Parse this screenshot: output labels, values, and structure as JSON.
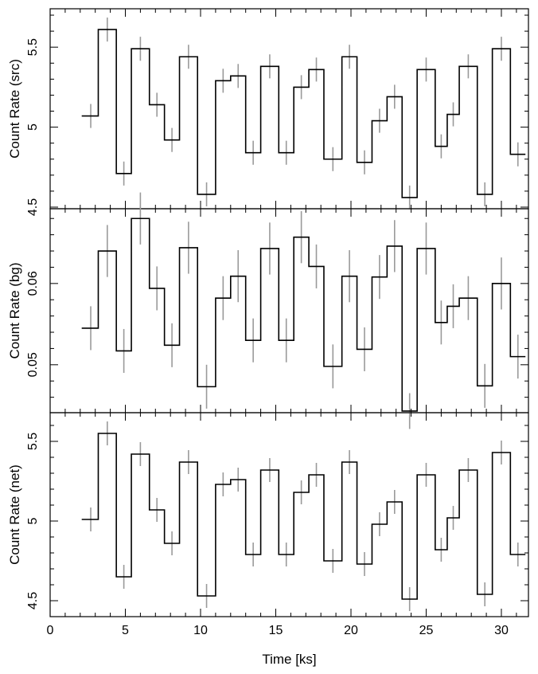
{
  "chart_data": {
    "type": "line",
    "style": "step-histogram-with-error-bars",
    "xlabel": "Time [ks]",
    "xlim": [
      0,
      31.8
    ],
    "x_ticks": [
      0,
      5,
      10,
      15,
      20,
      25,
      30
    ],
    "x_tick_labels": [
      "0",
      "5",
      "10",
      "15",
      "20",
      "25",
      "30"
    ],
    "bin_edges": [
      2.1,
      3.2,
      4.4,
      5.4,
      6.6,
      7.6,
      8.6,
      9.8,
      11.0,
      12.0,
      13.0,
      14.0,
      15.2,
      16.2,
      17.2,
      18.2,
      19.4,
      20.4,
      21.4,
      22.4,
      23.4,
      24.4,
      25.6,
      26.4,
      27.2,
      28.4,
      29.4,
      30.6,
      31.6
    ],
    "error_bar_x": [
      2.7,
      3.8,
      4.9,
      6.0,
      7.1,
      8.1,
      9.2,
      10.4,
      11.5,
      12.5,
      13.5,
      14.6,
      15.7,
      16.7,
      17.7,
      18.8,
      19.9,
      20.9,
      21.9,
      22.9,
      23.9,
      25.0,
      26.0,
      26.8,
      27.8,
      28.9,
      30.0,
      31.1
    ],
    "panels": [
      {
        "ylabel": "Count Rate (src)",
        "ylim": [
          4.49,
          5.74
        ],
        "y_ticks": [
          4.5,
          5,
          5.5
        ],
        "y_tick_labels": [
          "4.5",
          "5",
          "5.5"
        ],
        "values": [
          5.07,
          5.61,
          4.71,
          5.49,
          5.14,
          4.92,
          5.44,
          4.58,
          5.29,
          5.32,
          4.84,
          5.38,
          4.84,
          5.25,
          5.36,
          4.8,
          5.44,
          4.78,
          5.04,
          5.19,
          4.56,
          5.36,
          4.88,
          5.08,
          5.38,
          4.58,
          5.49,
          4.83
        ],
        "errors": [
          0.075,
          0.075,
          0.075,
          0.075,
          0.075,
          0.075,
          0.075,
          0.075,
          0.075,
          0.075,
          0.075,
          0.075,
          0.075,
          0.075,
          0.075,
          0.075,
          0.075,
          0.075,
          0.075,
          0.075,
          0.075,
          0.075,
          0.075,
          0.075,
          0.075,
          0.075,
          0.075,
          0.075
        ]
      },
      {
        "ylabel": "Count Rate (bg)",
        "ylim": [
          0.0441,
          0.0692
        ],
        "y_ticks": [
          0.05,
          0.06
        ],
        "y_tick_labels": [
          "0.05",
          "0.06"
        ],
        "values": [
          0.0545,
          0.064,
          0.0517,
          0.068,
          0.0594,
          0.0524,
          0.0644,
          0.0473,
          0.0582,
          0.0609,
          0.053,
          0.0643,
          0.053,
          0.0657,
          0.0621,
          0.0498,
          0.0609,
          0.0519,
          0.0608,
          0.0646,
          0.0443,
          0.0643,
          0.0552,
          0.0572,
          0.0582,
          0.0474,
          0.06,
          0.051
        ],
        "errors": [
          0.0027,
          0.0032,
          0.0027,
          0.0032,
          0.0027,
          0.0027,
          0.0032,
          0.0027,
          0.0027,
          0.0032,
          0.0027,
          0.0032,
          0.0027,
          0.0032,
          0.0027,
          0.0027,
          0.0032,
          0.0027,
          0.0027,
          0.0032,
          0.0022,
          0.0032,
          0.0027,
          0.0027,
          0.0027,
          0.0027,
          0.0032,
          0.0027
        ]
      },
      {
        "ylabel": "Count Rate (net)",
        "ylim": [
          4.4,
          5.68
        ],
        "y_ticks": [
          4.5,
          5,
          5.5
        ],
        "y_tick_labels": [
          "4.5",
          "5",
          "5.5"
        ],
        "values": [
          5.01,
          5.55,
          4.65,
          5.42,
          5.07,
          4.86,
          5.37,
          4.53,
          5.23,
          5.26,
          4.79,
          5.32,
          4.79,
          5.18,
          5.29,
          4.75,
          5.37,
          4.73,
          4.98,
          5.12,
          4.51,
          5.29,
          4.82,
          5.02,
          5.32,
          4.54,
          5.43,
          4.79
        ],
        "errors": [
          0.075,
          0.075,
          0.075,
          0.075,
          0.075,
          0.075,
          0.075,
          0.075,
          0.075,
          0.075,
          0.075,
          0.075,
          0.075,
          0.075,
          0.075,
          0.075,
          0.075,
          0.075,
          0.075,
          0.075,
          0.075,
          0.075,
          0.075,
          0.075,
          0.075,
          0.075,
          0.075,
          0.075
        ]
      }
    ],
    "grid": false,
    "legend": "none",
    "colors": {
      "step": "#000000",
      "error_bar": "#9a9a9a"
    }
  }
}
